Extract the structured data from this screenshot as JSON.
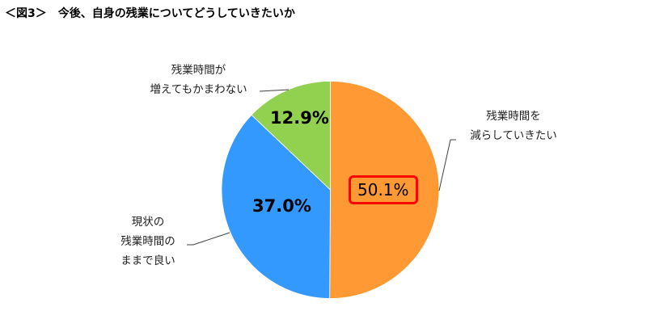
{
  "title": "＜図3＞　今後、自身の残業についてどうしていきたいか",
  "chart_data": {
    "type": "pie",
    "title": "＜図3＞　今後、自身の残業についてどうしていきたいか",
    "start_angle": "12 o'clock, clockwise",
    "slices": [
      {
        "label": "残業時間を減らしていきたい",
        "label_lines": [
          "残業時間を",
          "減らしていきたい"
        ],
        "value": 50.1,
        "display": "50.1%",
        "color": "#FF9933",
        "highlighted": true
      },
      {
        "label": "現状の残業時間のままで良い",
        "label_lines": [
          "現状の",
          "残業時間の",
          "ままで良い"
        ],
        "value": 37.0,
        "display": "37.0%",
        "color": "#3399FF",
        "highlighted": false
      },
      {
        "label": "残業時間が増えてもかまわない",
        "label_lines": [
          "残業時間が",
          "増えてもかまわない"
        ],
        "value": 12.9,
        "display": "12.9%",
        "color": "#92D050",
        "highlighted": false
      }
    ],
    "highlight_color": "#FF0000",
    "legend": "none (leader-line labels)"
  }
}
